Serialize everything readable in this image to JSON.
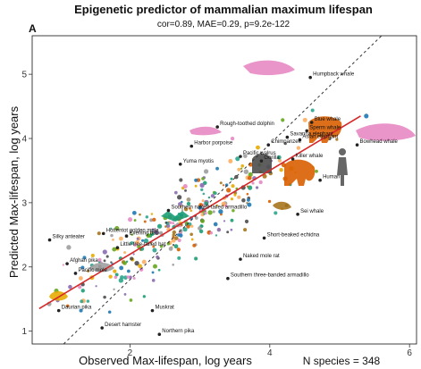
{
  "chart_data": {
    "type": "scatter",
    "title": "Epigenetic predictor of mammalian maximum lifespan",
    "subtitle": "cor=0.89, MAE=0.29, p=9.2e-122",
    "panel_label": "A",
    "xlabel": "Observed Max-lifespan, log years",
    "ylabel": "Predicted Max-lifespan, log years",
    "n_species_label": "N species = 348",
    "xlim": [
      0.6,
      6.1
    ],
    "ylim": [
      0.8,
      5.6
    ],
    "x_ticks": [
      2,
      4,
      6
    ],
    "y_ticks": [
      1,
      2,
      3,
      4,
      5
    ],
    "identity_line": {
      "style": "dashed",
      "color": "#333333"
    },
    "fit_line": {
      "x": [
        0.7,
        5.3
      ],
      "y": [
        1.35,
        4.35
      ],
      "color": "#d62728"
    },
    "labeled_species": [
      {
        "name": "Humpback whale",
        "x": 4.58,
        "y": 4.95
      },
      {
        "name": "Blue whale",
        "x": 4.6,
        "y": 4.25
      },
      {
        "name": "Sperm whale",
        "x": 4.53,
        "y": 4.12
      },
      {
        "name": "Asian elephant",
        "x": 4.43,
        "y": 3.98
      },
      {
        "name": "Savanna elephant",
        "x": 4.25,
        "y": 4.02
      },
      {
        "name": "Bowhead whale",
        "x": 5.25,
        "y": 3.9
      },
      {
        "name": "Chimpanzee",
        "x": 3.98,
        "y": 3.9
      },
      {
        "name": "Gorilla",
        "x": 3.88,
        "y": 3.65
      },
      {
        "name": "Killer whale",
        "x": 4.33,
        "y": 3.68
      },
      {
        "name": "Human",
        "x": 4.72,
        "y": 3.35
      },
      {
        "name": "Rough-toothed dolphin",
        "x": 3.25,
        "y": 4.18
      },
      {
        "name": "Harbor porpoise",
        "x": 2.88,
        "y": 3.88
      },
      {
        "name": "Pacific walrus",
        "x": 3.58,
        "y": 3.72
      },
      {
        "name": "Yuma myotis",
        "x": 2.72,
        "y": 3.6
      },
      {
        "name": "Sei whale",
        "x": 4.4,
        "y": 2.82
      },
      {
        "name": "Southern naked-tailed armadillo",
        "x": 2.55,
        "y": 2.88
      },
      {
        "name": "Hottentot golden mole",
        "x": 1.62,
        "y": 2.52
      },
      {
        "name": "Evening bat",
        "x": 1.95,
        "y": 2.48
      },
      {
        "name": "Silky anteater",
        "x": 0.85,
        "y": 2.42
      },
      {
        "name": "Little free-tailed bat",
        "x": 1.82,
        "y": 2.3
      },
      {
        "name": "Short-beaked echidna",
        "x": 3.92,
        "y": 2.45
      },
      {
        "name": "Naked mole rat",
        "x": 3.58,
        "y": 2.12
      },
      {
        "name": "Afghan pika",
        "x": 1.1,
        "y": 2.05
      },
      {
        "name": "Pacific mole",
        "x": 1.22,
        "y": 1.9
      },
      {
        "name": "Southern three-banded armadillo",
        "x": 3.4,
        "y": 1.82
      },
      {
        "name": "Daurian pika",
        "x": 0.98,
        "y": 1.32
      },
      {
        "name": "Muskrat",
        "x": 2.32,
        "y": 1.32
      },
      {
        "name": "Desert hamster",
        "x": 1.6,
        "y": 1.05
      },
      {
        "name": "Northern pika",
        "x": 2.42,
        "y": 0.95
      }
    ]
  }
}
